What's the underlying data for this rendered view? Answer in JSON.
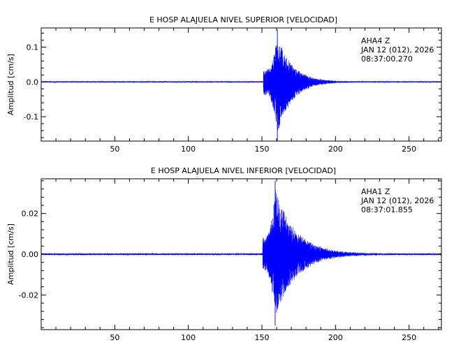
{
  "chart_data": [
    {
      "type": "line",
      "title": "E HOSP ALAJUELA NIVEL SUPERIOR [VELOCIDAD]",
      "xlabel": "",
      "ylabel": "Amplitud [cm/s]",
      "xlim": [
        0,
        272
      ],
      "ylim": [
        -0.17,
        0.155
      ],
      "xticks": [
        50,
        100,
        150,
        200,
        250
      ],
      "yticks": [
        0.1,
        0.0,
        -0.1
      ],
      "ytick_labels": [
        "0.1",
        "0.0",
        "-0.1"
      ],
      "grid": false,
      "series_color": "#0000ff",
      "station": "AHA4   Z",
      "date": "JAN 12 (012), 2026",
      "time": "08:37:00.270",
      "trace": {
        "noise_amp": 0.0015,
        "onset": 151,
        "peak_time": 160.5,
        "peak_amp": 0.15,
        "min_amp": -0.17,
        "decay_s": 10,
        "end": 272
      }
    },
    {
      "type": "line",
      "title": "E HOSP ALAJUELA NIVEL INFERIOR [VELOCIDAD]",
      "xlabel": "",
      "ylabel": "Amplitud [cm/s]",
      "xlim": [
        0,
        272
      ],
      "ylim": [
        -0.037,
        0.037
      ],
      "xticks": [
        50,
        100,
        150,
        200,
        250
      ],
      "yticks": [
        0.02,
        0.0,
        -0.02
      ],
      "ytick_labels": [
        "0.02",
        "0.00",
        "-0.02"
      ],
      "grid": false,
      "series_color": "#0000ff",
      "station": "AHA1   Z",
      "date": "JAN 12 (012), 2026",
      "time": "08:37:01.855",
      "trace": {
        "noise_amp": 0.0004,
        "onset": 150.5,
        "peak_time": 159,
        "peak_amp": 0.036,
        "min_amp": -0.035,
        "decay_s": 14,
        "end": 272
      }
    }
  ]
}
